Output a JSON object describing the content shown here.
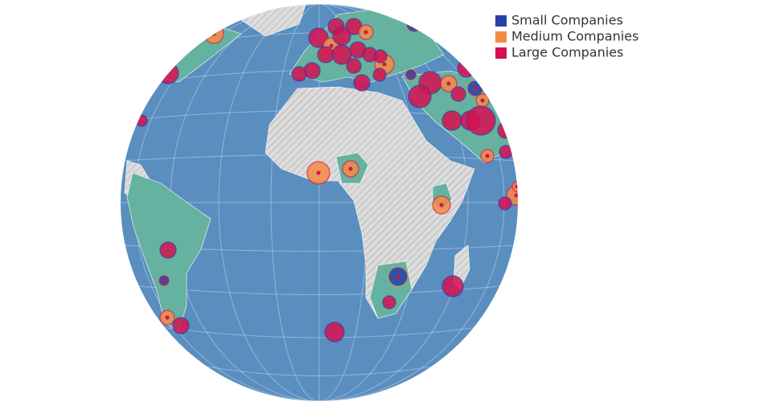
{
  "legend": {
    "items": [
      {
        "label": "Small Companies",
        "color": "#2a3fa5"
      },
      {
        "label": "Medium Companies",
        "color": "#f58a45"
      },
      {
        "label": "Large Companies",
        "color": "#d6104f"
      }
    ]
  }
}
